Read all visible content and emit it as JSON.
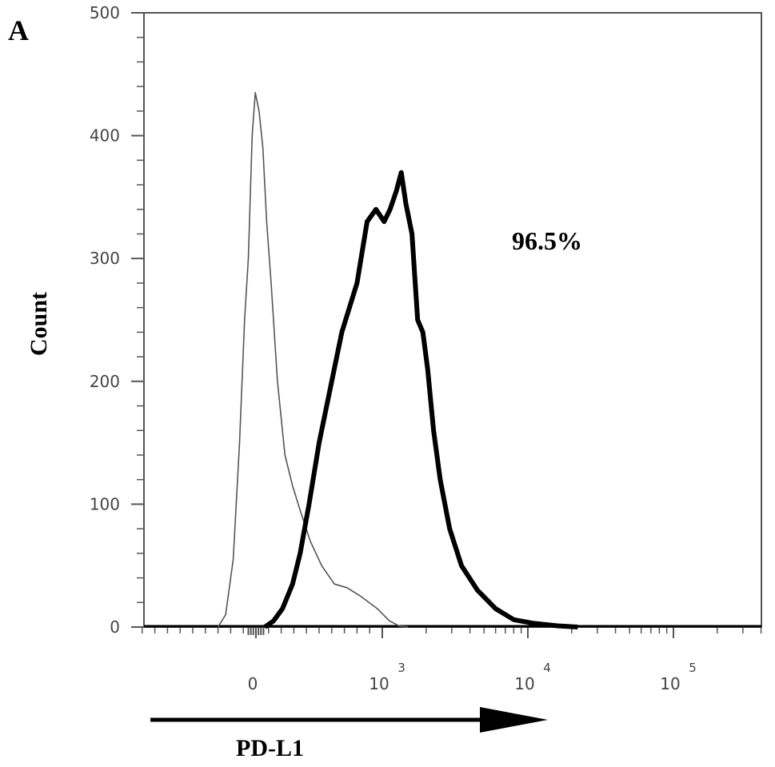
{
  "panel_label": "A",
  "chart_data": {
    "type": "line",
    "title": "",
    "xlabel": "PD-L1",
    "ylabel": "Count",
    "x_scale": "biexponential",
    "ylim": [
      0,
      500
    ],
    "y_ticks": [
      0,
      100,
      200,
      300,
      400,
      500
    ],
    "x_ticks": [
      {
        "base": "0",
        "exp": ""
      },
      {
        "base": "10",
        "exp": "3"
      },
      {
        "base": "10",
        "exp": "4"
      },
      {
        "base": "10",
        "exp": "5"
      }
    ],
    "series": [
      {
        "style": "thin",
        "color": "#555555",
        "points": [
          [
            -300,
            0
          ],
          [
            -240,
            10
          ],
          [
            -180,
            55
          ],
          [
            -130,
            150
          ],
          [
            -90,
            250
          ],
          [
            -60,
            300
          ],
          [
            -30,
            400
          ],
          [
            -5,
            435
          ],
          [
            25,
            420
          ],
          [
            55,
            390
          ],
          [
            85,
            330
          ],
          [
            120,
            280
          ],
          [
            170,
            200
          ],
          [
            230,
            140
          ],
          [
            290,
            115
          ],
          [
            350,
            95
          ],
          [
            430,
            70
          ],
          [
            520,
            50
          ],
          [
            620,
            35
          ],
          [
            720,
            32
          ],
          [
            830,
            25
          ],
          [
            960,
            15
          ],
          [
            1120,
            5
          ],
          [
            1300,
            1
          ],
          [
            1500,
            0
          ]
        ]
      },
      {
        "style": "thick",
        "color": "#000000",
        "points": [
          [
            70,
            0
          ],
          [
            140,
            5
          ],
          [
            210,
            15
          ],
          [
            290,
            35
          ],
          [
            350,
            60
          ],
          [
            420,
            100
          ],
          [
            500,
            150
          ],
          [
            580,
            190
          ],
          [
            680,
            240
          ],
          [
            800,
            280
          ],
          [
            880,
            330
          ],
          [
            950,
            340
          ],
          [
            1030,
            330
          ],
          [
            1130,
            340
          ],
          [
            1250,
            355
          ],
          [
            1350,
            370
          ],
          [
            1450,
            345
          ],
          [
            1600,
            320
          ],
          [
            1750,
            250
          ],
          [
            1900,
            240
          ],
          [
            2050,
            210
          ],
          [
            2250,
            160
          ],
          [
            2500,
            120
          ],
          [
            2900,
            80
          ],
          [
            3500,
            50
          ],
          [
            4500,
            30
          ],
          [
            6000,
            15
          ],
          [
            8000,
            6
          ],
          [
            11000,
            3
          ],
          [
            16000,
            1
          ],
          [
            22000,
            0
          ]
        ]
      }
    ],
    "annotations": [
      {
        "text": "96.5%"
      }
    ]
  }
}
